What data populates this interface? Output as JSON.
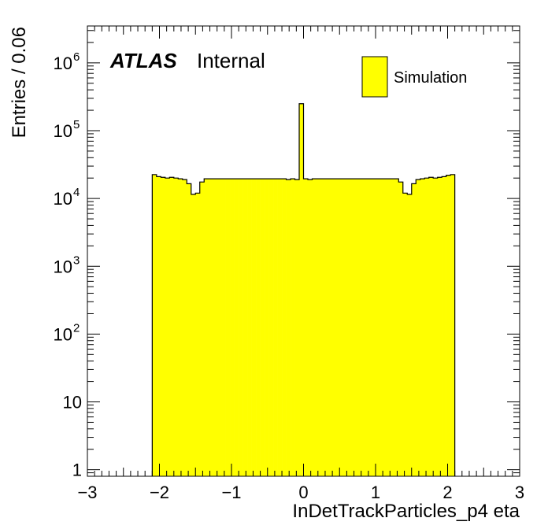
{
  "chart_data": {
    "type": "histogram",
    "xlabel": "InDetTrackParticles_p4 eta",
    "ylabel": "Entries / 0.06",
    "experiment_label": "ATLAS",
    "status_label": "Internal",
    "xlim": [
      -3,
      3
    ],
    "ylim": [
      0.8,
      3500000
    ],
    "y_scale": "log",
    "x_tick_labels": [
      "−3",
      "−2",
      "−1",
      "0",
      "1",
      "2",
      "3"
    ],
    "x_tick_values": [
      -3,
      -2,
      -1,
      0,
      1,
      2,
      3
    ],
    "y_ticks": [
      {
        "value": 1,
        "base": "1",
        "exp": ""
      },
      {
        "value": 10,
        "base": "10",
        "exp": ""
      },
      {
        "value": 100,
        "base": "10",
        "exp": "2"
      },
      {
        "value": 1000,
        "base": "10",
        "exp": "3"
      },
      {
        "value": 10000,
        "base": "10",
        "exp": "4"
      },
      {
        "value": 100000,
        "base": "10",
        "exp": "5"
      },
      {
        "value": 1000000,
        "base": "10",
        "exp": "6"
      }
    ],
    "legend": {
      "entry": "Simulation",
      "color": "#ffff00",
      "placement": "top-right"
    },
    "fill_color": "#ffff00",
    "line_color": "#000000",
    "bin_width": 0.06,
    "bin_edges_start": -2.1,
    "values": [
      22500,
      21000,
      20500,
      20000,
      20500,
      20000,
      19500,
      19000,
      16500,
      11500,
      12000,
      17500,
      19500,
      19500,
      19500,
      19500,
      19500,
      19500,
      19500,
      19500,
      19500,
      19500,
      19500,
      19500,
      19500,
      19500,
      19500,
      19500,
      19500,
      19500,
      19500,
      19000,
      19500,
      19000,
      250000,
      19500,
      19000,
      19500,
      19500,
      19500,
      19500,
      19500,
      19500,
      19500,
      19500,
      19500,
      19500,
      19500,
      19500,
      19500,
      19500,
      19500,
      19500,
      19500,
      19500,
      19500,
      19500,
      17500,
      12000,
      11500,
      16500,
      19000,
      19500,
      20000,
      20500,
      20000,
      20500,
      21000,
      22000,
      22500
    ]
  }
}
